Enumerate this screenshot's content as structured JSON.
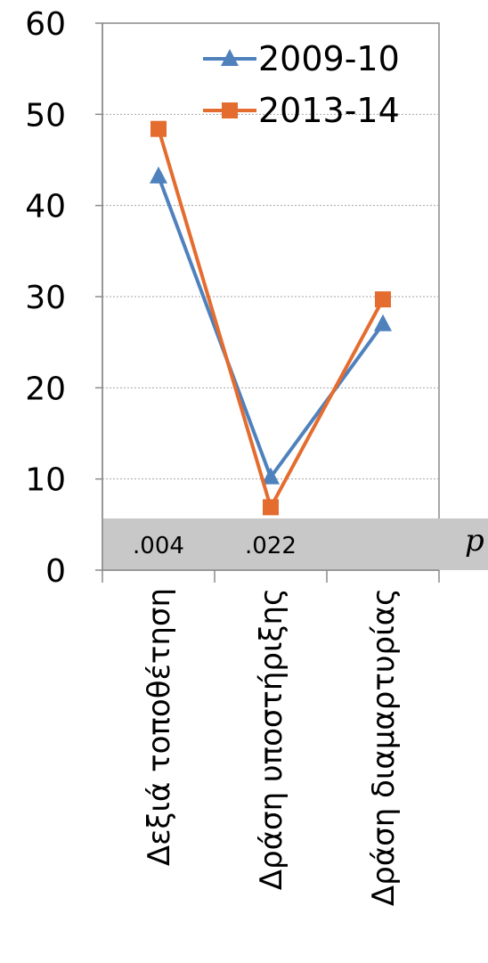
{
  "chart_data": {
    "type": "line",
    "categories": [
      "Δεξιά τοποθέτηση",
      "Δράση υποστήριξης",
      "Δράση διαμαρτυρίας"
    ],
    "series": [
      {
        "name": "2009-10",
        "values": [
          43.2,
          10.2,
          27.0
        ],
        "color": "#4f81bd",
        "marker": "triangle"
      },
      {
        "name": "2013-14",
        "values": [
          48.4,
          6.9,
          29.7
        ],
        "color": "#e46c2f",
        "marker": "square"
      }
    ],
    "ylim": [
      0,
      60
    ],
    "yticks": [
      "0",
      "10",
      "20",
      "30",
      "40",
      "50",
      "60"
    ],
    "grid": true,
    "legend_position": "top-right",
    "annotations": {
      "band_color": "#c8c8c8",
      "p_values": [
        ".004",
        ".022"
      ],
      "p_label": "p"
    }
  }
}
